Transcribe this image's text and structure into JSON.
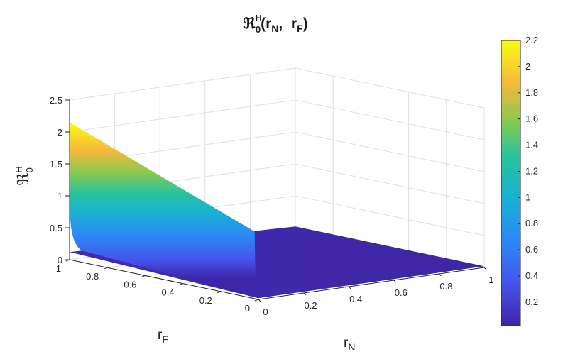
{
  "chart_data": {
    "type": "surface",
    "title": "ℜ₀ᴴ(r_N, r_F)",
    "title_parts": {
      "main": "ℜ",
      "sup": "H",
      "sub": "0",
      "args_open": "(",
      "var1": "r",
      "var1_sub": "N",
      "sep": ",  ",
      "var2": "r",
      "var2_sub": "F",
      "args_close": ")"
    },
    "xlabel": {
      "main": "r",
      "sub": "N"
    },
    "ylabel": {
      "main": "r",
      "sub": "F"
    },
    "zlabel": {
      "main": "ℜ",
      "sup": "H",
      "sub": "0"
    },
    "xlim": [
      0,
      1
    ],
    "ylim": [
      0,
      1
    ],
    "zlim": [
      0,
      2.5
    ],
    "x_ticks": [
      "0",
      "0.2",
      "0.4",
      "0.6",
      "0.8",
      "1"
    ],
    "y_ticks": [
      "0",
      "0.2",
      "0.4",
      "0.6",
      "0.8",
      "1"
    ],
    "z_ticks": [
      "0",
      "0.5",
      "1",
      "1.5",
      "2",
      "2.5"
    ],
    "grid": true,
    "colormap": "parula",
    "colorbar": {
      "range": [
        0.02,
        2.2
      ],
      "ticks": [
        "0.2",
        "0.4",
        "0.6",
        "0.8",
        "1",
        "1.2",
        "1.4",
        "1.6",
        "1.8",
        "2",
        "2.2"
      ]
    },
    "surface_samples": [
      {
        "r_N": 0.0,
        "r_F": 1.0,
        "value": 2.15
      },
      {
        "r_N": 0.0,
        "r_F": 0.02,
        "value": 1.05
      },
      {
        "r_N": 0.0,
        "r_F": 0.0,
        "value": 0.02
      },
      {
        "r_N": 0.02,
        "r_F": 1.0,
        "value": 0.35
      },
      {
        "r_N": 0.05,
        "r_F": 1.0,
        "value": 0.12
      },
      {
        "r_N": 1.0,
        "r_F": 1.0,
        "value": 0.02
      },
      {
        "r_N": 1.0,
        "r_F": 0.0,
        "value": 0.02
      }
    ]
  }
}
